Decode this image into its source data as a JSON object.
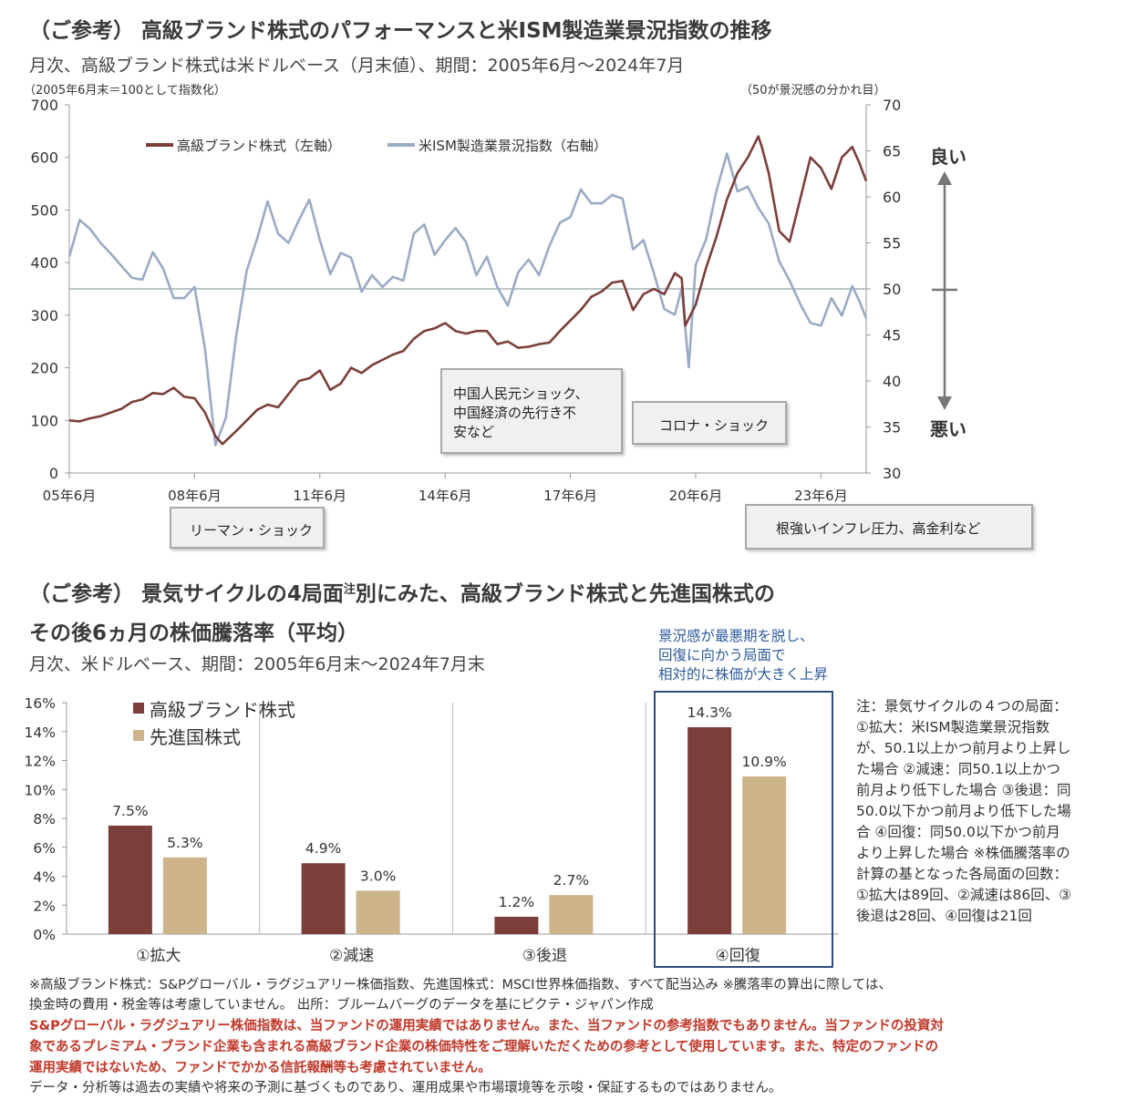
{
  "chart1": {
    "title": "（ご参考） 高級ブランド株式のパフォーマンスと米ISM製造業景況指数の推移",
    "subtitle": "月次、高級ブランド株式は米ドルベース（月末値）、期間：2005年6月～2024年7月",
    "left_axis_note": "（2005年6月末＝100として指数化）",
    "right_axis_note": "（50が景況感の分かれ目）",
    "good_label": "良い",
    "bad_label": "悪い",
    "annotations": {
      "lehman": "リーマン・ショック",
      "china": "中国人民元ショック、中国経済の先行き不安など",
      "china_lines": [
        "中国人民元ショック、",
        "中国経済の先行き不",
        "安など"
      ],
      "corona": "コロナ・ショック",
      "inflation": "根強いインフレ圧力、高金利など"
    }
  },
  "chart2": {
    "title_line1": "（ご参考） 景気サイクルの4局面",
    "title_sup": "注",
    "title_line1b": "別にみた、高級ブランド株式と先進国株式の",
    "title_line2": "その後6ヵ月の株価騰落率（平均）",
    "subtitle": "月次、米ドルベース、期間：2005年6月末～2024年7月末",
    "highlight_lines": [
      "景況感が最悪期を脱し、",
      "回復に向かう局面で",
      "相対的に株価が大きく上昇"
    ],
    "note": "注：景気サイクルの４つの局面：①拡大：米ISM製造業景況指数が、50.1以上かつ前月より上昇した場合 ②減速：同50.1以上かつ前月より低下した場合 ③後退：同50.0以下かつ前月より低下した場合 ④回復：同50.0以下かつ前月より上昇した場合 ※株価騰落率の計算の基となった各局面の回数：①拡大は89回、②減速は86回、③後退は28回、④回復は21回"
  },
  "footer": {
    "line1": "※高級ブランド株式：S&Pグローバル・ラグジュアリー株価指数、先進国株式：MSCI世界株価指数、すべて配当込み ※騰落率の算出に際しては、",
    "line2": "換金時の費用・税金等は考慮していません。 出所：ブルームバーグのデータを基にピクテ・ジャパン作成",
    "red1": "S&Pグローバル・ラグジュアリー株価指数は、当ファンドの運用実績ではありません。また、当ファンドの参考指数でもありません。当ファンドの投資対",
    "red2": "象であるプレミアム・ブランド企業も含まれる高級ブランド企業の株価特性をご理解いただくための参考として使用しています。また、特定のファンドの",
    "red3": "運用実績ではないため、ファンドでかかる信託報酬等も考慮されていません。",
    "line3": "データ・分析等は過去の実績や将来の予測に基づくものであり、運用成果や市場環境等を示唆・保証するものではありません。"
  },
  "colors": {
    "luxury": "#7b3f3a",
    "ism": "#9aabc4",
    "developed": "#cdb48a",
    "highlight": "#2e4d7b",
    "red_text": "#c0392b"
  },
  "chart_data": [
    {
      "type": "line",
      "title": "高級ブランド株式のパフォーマンスと米ISM製造業景況指数の推移",
      "x_ticks": [
        "05年6月",
        "08年6月",
        "11年6月",
        "14年6月",
        "17年6月",
        "20年6月",
        "23年6月"
      ],
      "x_range": [
        "2005-06",
        "2024-07"
      ],
      "y_left_range": [
        0,
        700
      ],
      "y_left_ticks": [
        0,
        100,
        200,
        300,
        400,
        500,
        600,
        700
      ],
      "y_right_range": [
        30,
        70
      ],
      "y_right_ticks": [
        30,
        35,
        40,
        45,
        50,
        55,
        60,
        65,
        70
      ],
      "reference_line": {
        "axis": "right",
        "value": 50
      },
      "legend_position": "top-left",
      "series": [
        {
          "name": "高級ブランド株式（左軸）",
          "axis": "left",
          "points": [
            [
              "2005-06",
              100
            ],
            [
              "2005-09",
              98
            ],
            [
              "2005-12",
              104
            ],
            [
              "2006-03",
              108
            ],
            [
              "2006-06",
              115
            ],
            [
              "2006-09",
              122
            ],
            [
              "2006-12",
              135
            ],
            [
              "2007-03",
              140
            ],
            [
              "2007-06",
              152
            ],
            [
              "2007-09",
              150
            ],
            [
              "2007-12",
              162
            ],
            [
              "2008-03",
              145
            ],
            [
              "2008-06",
              142
            ],
            [
              "2008-09",
              115
            ],
            [
              "2008-12",
              70
            ],
            [
              "2009-02",
              55
            ],
            [
              "2009-06",
              80
            ],
            [
              "2009-09",
              100
            ],
            [
              "2009-12",
              120
            ],
            [
              "2010-03",
              130
            ],
            [
              "2010-06",
              125
            ],
            [
              "2010-09",
              150
            ],
            [
              "2010-12",
              175
            ],
            [
              "2011-03",
              180
            ],
            [
              "2011-06",
              195
            ],
            [
              "2011-09",
              158
            ],
            [
              "2011-12",
              170
            ],
            [
              "2012-03",
              200
            ],
            [
              "2012-06",
              190
            ],
            [
              "2012-09",
              205
            ],
            [
              "2012-12",
              215
            ],
            [
              "2013-03",
              225
            ],
            [
              "2013-06",
              232
            ],
            [
              "2013-09",
              255
            ],
            [
              "2013-12",
              270
            ],
            [
              "2014-03",
              275
            ],
            [
              "2014-06",
              285
            ],
            [
              "2014-09",
              270
            ],
            [
              "2014-12",
              265
            ],
            [
              "2015-03",
              270
            ],
            [
              "2015-06",
              270
            ],
            [
              "2015-09",
              245
            ],
            [
              "2015-12",
              250
            ],
            [
              "2016-03",
              238
            ],
            [
              "2016-06",
              240
            ],
            [
              "2016-09",
              245
            ],
            [
              "2016-12",
              248
            ],
            [
              "2017-03",
              270
            ],
            [
              "2017-06",
              290
            ],
            [
              "2017-09",
              310
            ],
            [
              "2017-12",
              335
            ],
            [
              "2018-03",
              345
            ],
            [
              "2018-06",
              362
            ],
            [
              "2018-09",
              365
            ],
            [
              "2018-12",
              310
            ],
            [
              "2019-03",
              340
            ],
            [
              "2019-06",
              350
            ],
            [
              "2019-09",
              340
            ],
            [
              "2019-12",
              380
            ],
            [
              "2020-02",
              370
            ],
            [
              "2020-03",
              280
            ],
            [
              "2020-06",
              320
            ],
            [
              "2020-09",
              390
            ],
            [
              "2020-12",
              450
            ],
            [
              "2021-03",
              520
            ],
            [
              "2021-06",
              570
            ],
            [
              "2021-09",
              600
            ],
            [
              "2021-12",
              640
            ],
            [
              "2022-01",
              620
            ],
            [
              "2022-03",
              570
            ],
            [
              "2022-06",
              460
            ],
            [
              "2022-09",
              440
            ],
            [
              "2022-12",
              520
            ],
            [
              "2023-03",
              600
            ],
            [
              "2023-06",
              580
            ],
            [
              "2023-09",
              540
            ],
            [
              "2023-12",
              600
            ],
            [
              "2024-03",
              620
            ],
            [
              "2024-05",
              590
            ],
            [
              "2024-07",
              555
            ]
          ]
        },
        {
          "name": "米ISM製造業景況指数（右軸）",
          "axis": "right",
          "points": [
            [
              "2005-06",
              53.5
            ],
            [
              "2005-09",
              57.5
            ],
            [
              "2005-12",
              56.5
            ],
            [
              "2006-03",
              55
            ],
            [
              "2006-06",
              53.8
            ],
            [
              "2006-09",
              52.5
            ],
            [
              "2006-12",
              51.2
            ],
            [
              "2007-03",
              51
            ],
            [
              "2007-06",
              54
            ],
            [
              "2007-09",
              52.2
            ],
            [
              "2007-12",
              49
            ],
            [
              "2008-03",
              49
            ],
            [
              "2008-06",
              50.2
            ],
            [
              "2008-09",
              43.5
            ],
            [
              "2008-12",
              33
            ],
            [
              "2009-03",
              36
            ],
            [
              "2009-06",
              45
            ],
            [
              "2009-09",
              52
            ],
            [
              "2009-12",
              55.5
            ],
            [
              "2010-03",
              59.5
            ],
            [
              "2010-06",
              56
            ],
            [
              "2010-09",
              55
            ],
            [
              "2010-12",
              57.5
            ],
            [
              "2011-03",
              59.7
            ],
            [
              "2011-06",
              55.3
            ],
            [
              "2011-09",
              51.6
            ],
            [
              "2011-12",
              53.9
            ],
            [
              "2012-03",
              53.4
            ],
            [
              "2012-06",
              49.7
            ],
            [
              "2012-09",
              51.5
            ],
            [
              "2012-12",
              50.2
            ],
            [
              "2013-03",
              51.3
            ],
            [
              "2013-06",
              50.9
            ],
            [
              "2013-09",
              56
            ],
            [
              "2013-12",
              57
            ],
            [
              "2014-03",
              53.7
            ],
            [
              "2014-06",
              55.3
            ],
            [
              "2014-09",
              56.6
            ],
            [
              "2014-12",
              55.1
            ],
            [
              "2015-03",
              51.5
            ],
            [
              "2015-06",
              53.5
            ],
            [
              "2015-09",
              50.2
            ],
            [
              "2015-12",
              48.2
            ],
            [
              "2016-03",
              51.8
            ],
            [
              "2016-06",
              53.2
            ],
            [
              "2016-09",
              51.5
            ],
            [
              "2016-12",
              54.7
            ],
            [
              "2017-03",
              57.2
            ],
            [
              "2017-06",
              57.8
            ],
            [
              "2017-09",
              60.8
            ],
            [
              "2017-12",
              59.3
            ],
            [
              "2018-03",
              59.3
            ],
            [
              "2018-06",
              60.2
            ],
            [
              "2018-09",
              59.8
            ],
            [
              "2018-12",
              54.3
            ],
            [
              "2019-03",
              55.3
            ],
            [
              "2019-06",
              51.7
            ],
            [
              "2019-09",
              47.8
            ],
            [
              "2019-12",
              47.2
            ],
            [
              "2020-02",
              50.1
            ],
            [
              "2020-04",
              41.5
            ],
            [
              "2020-06",
              52.6
            ],
            [
              "2020-09",
              55.4
            ],
            [
              "2020-12",
              60.7
            ],
            [
              "2021-03",
              64.7
            ],
            [
              "2021-06",
              60.6
            ],
            [
              "2021-09",
              61.1
            ],
            [
              "2021-12",
              58.8
            ],
            [
              "2022-03",
              57.1
            ],
            [
              "2022-06",
              53
            ],
            [
              "2022-09",
              50.9
            ],
            [
              "2022-12",
              48.4
            ],
            [
              "2023-03",
              46.3
            ],
            [
              "2023-06",
              46
            ],
            [
              "2023-09",
              49
            ],
            [
              "2023-12",
              47.1
            ],
            [
              "2024-03",
              50.3
            ],
            [
              "2024-05",
              48.7
            ],
            [
              "2024-07",
              46.8
            ]
          ]
        }
      ]
    },
    {
      "type": "bar",
      "title": "景気サイクルの4局面別にみた、高級ブランド株式と先進国株式のその後6ヵ月の株価騰落率（平均）",
      "categories": [
        "①拡大",
        "②減速",
        "③後退",
        "④回復"
      ],
      "ylim": [
        0,
        16
      ],
      "y_ticks": [
        "0%",
        "2%",
        "4%",
        "6%",
        "8%",
        "10%",
        "12%",
        "14%",
        "16%"
      ],
      "legend_position": "top-left",
      "series": [
        {
          "name": "高級ブランド株式",
          "values": [
            7.5,
            4.9,
            1.2,
            14.3
          ],
          "labels": [
            "7.5%",
            "4.9%",
            "1.2%",
            "14.3%"
          ]
        },
        {
          "name": "先進国株式",
          "values": [
            5.3,
            3.0,
            2.7,
            10.9
          ],
          "labels": [
            "5.3%",
            "3.0%",
            "2.7%",
            "10.9%"
          ]
        }
      ]
    }
  ]
}
